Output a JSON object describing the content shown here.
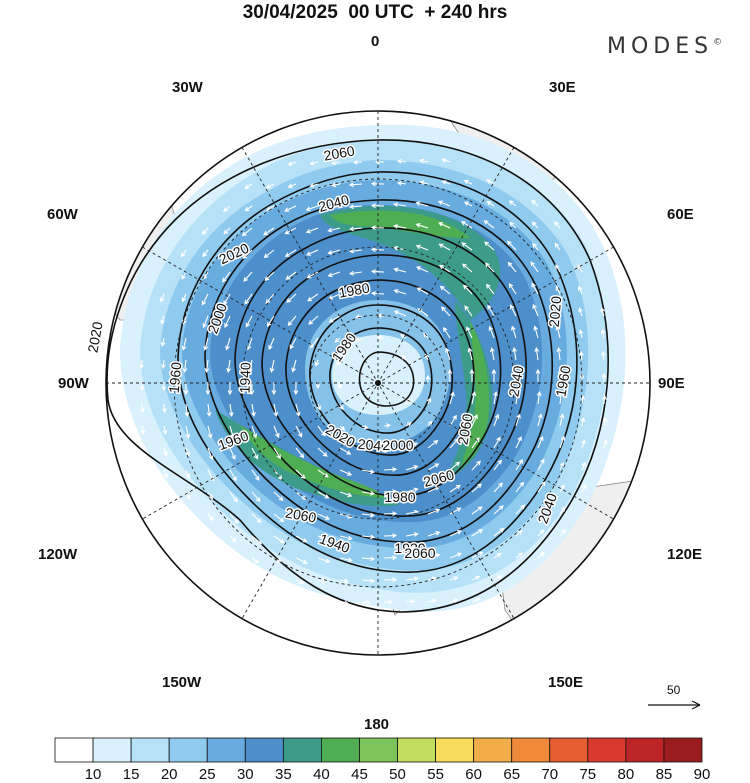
{
  "title": "30/04/2025  00 UTC  + 240 hrs",
  "brand": {
    "name": "MODES",
    "mark": "©"
  },
  "longitude_labels": {
    "top": "0",
    "bottom": "180",
    "left": "90W",
    "right": "90E",
    "upper_left": "30W",
    "upper_right": "30E",
    "left_upper": "60W",
    "right_upper": "60E",
    "left_lower": "120W",
    "right_lower": "120E",
    "lower_left": "150W",
    "lower_right": "150E"
  },
  "contour_labels": [
    "2060",
    "2040",
    "2020",
    "2000",
    "1980",
    "1960",
    "1940",
    "1920",
    "1960",
    "2020",
    "2040",
    "2060",
    "2060",
    "2040",
    "2020",
    "2000",
    "1980",
    "1940",
    "1960",
    "2020",
    "2040",
    "2060",
    "2060",
    "1980"
  ],
  "reference_vector": {
    "label": "50"
  },
  "colorbar": {
    "ticks": [
      "10",
      "15",
      "20",
      "25",
      "30",
      "35",
      "40",
      "45",
      "50",
      "55",
      "60",
      "65",
      "70",
      "75",
      "80",
      "85",
      "90"
    ],
    "colors": [
      "#ffffff",
      "#d8f1fc",
      "#b7e1f7",
      "#8fcbee",
      "#67abdf",
      "#4c8fca",
      "#3d9b8a",
      "#4fae53",
      "#7dc45a",
      "#c2dd5d",
      "#f7dc5b",
      "#f3ad48",
      "#ee8a3a",
      "#e65e30",
      "#d83a2d",
      "#bd2427",
      "#9b1c1f"
    ]
  },
  "colors": {
    "land": "#efefef",
    "coast": "#8a8a8a",
    "contour": "#111111",
    "grid": "#222222"
  }
}
